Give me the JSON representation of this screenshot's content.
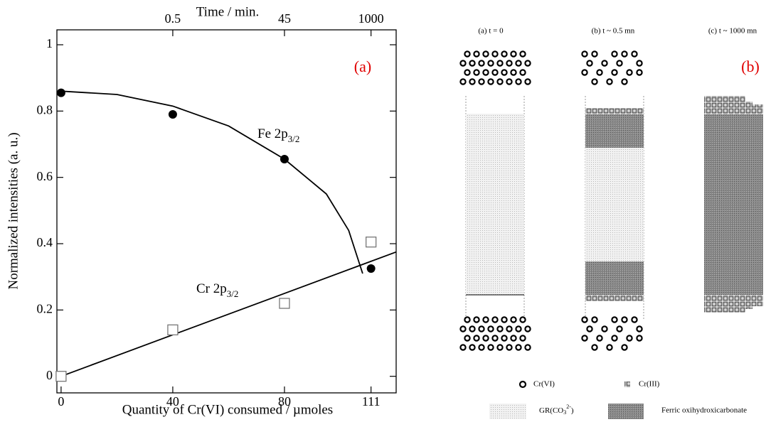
{
  "chart_data": {
    "type": "scatter",
    "x2label": "Time / min.",
    "xlabel": "Quantity of Cr(VI) consumed / µmoles",
    "ylabel": "Normalized intensities (a. u.)",
    "panel_label": "(a)",
    "xlim": [
      -1.5,
      120
    ],
    "ylim": [
      -0.05,
      1.045
    ],
    "xticks": [
      0,
      40,
      80,
      111
    ],
    "yticks": [
      0,
      0.2,
      0.4,
      0.6,
      0.8,
      1
    ],
    "x2ticks": [
      0.5,
      45,
      1000
    ],
    "x2tick_positions": [
      40,
      80,
      111
    ],
    "series": [
      {
        "marker": "circle",
        "color": "#000000",
        "x": [
          0,
          40,
          80,
          111
        ],
        "values": [
          0.855,
          0.79,
          0.655,
          0.325
        ]
      },
      {
        "marker": "square",
        "color": "#777777",
        "x": [
          0,
          40,
          80,
          111
        ],
        "values": [
          0,
          0.14,
          0.22,
          0.405
        ]
      }
    ],
    "fits": [
      {
        "color": "#000000",
        "x": [
          0,
          20,
          40,
          60,
          80,
          95,
          103,
          108
        ],
        "values": [
          0.86,
          0.85,
          0.815,
          0.755,
          0.655,
          0.55,
          0.44,
          0.31
        ]
      },
      {
        "color": "#000000",
        "x": [
          0,
          120
        ],
        "values": [
          0,
          0.375
        ]
      }
    ],
    "annotations": [
      {
        "text": "Fe 2p",
        "subscript": "3/2"
      },
      {
        "text": "Cr 2p",
        "subscript": "3/2"
      }
    ]
  },
  "diagram": {
    "panel_label": "(b)",
    "columns": [
      "(a) t = 0",
      "(b) t ~ 0.5 mn",
      "(c) t ~ 1000 mn"
    ],
    "legend": {
      "cr6": "Cr(VI)",
      "cr3": "Cr(III)",
      "gr": {
        "text": "GR(CO",
        "sub": "3",
        "sup": "2-",
        "tail": ")"
      },
      "ferric": "Ferric oxihydroxicarbonate"
    }
  }
}
